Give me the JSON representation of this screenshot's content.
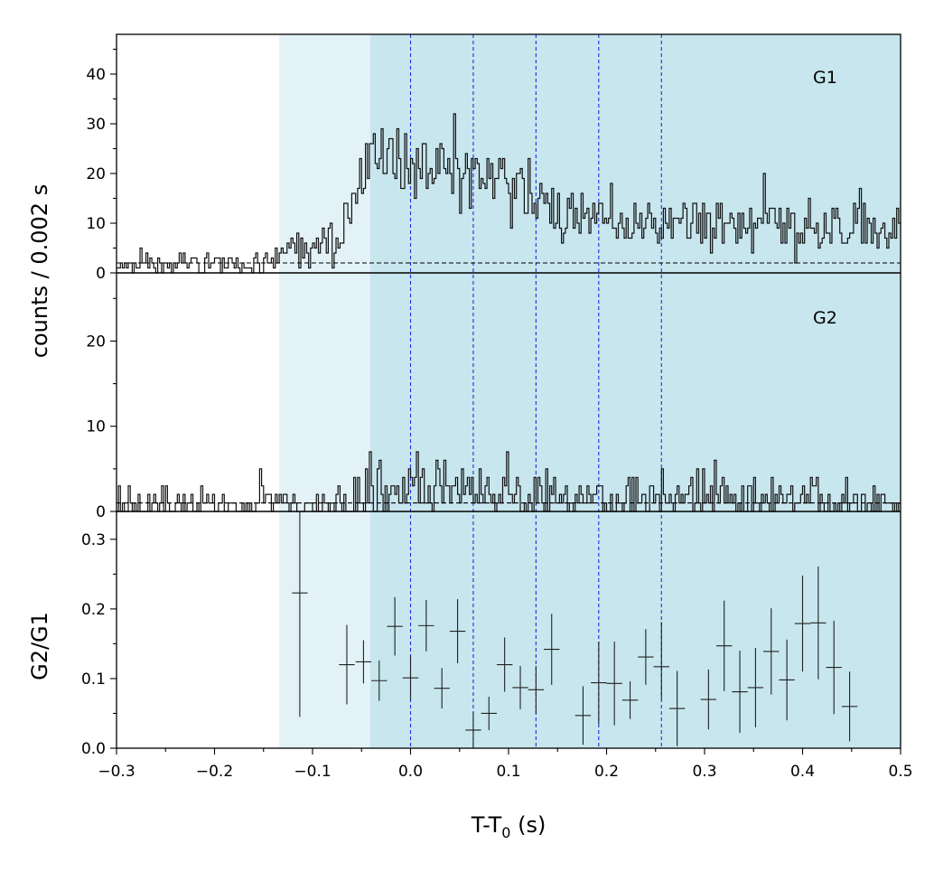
{
  "chart_data": {
    "type": "line",
    "xlabel": "T-T",
    "xlabel_sub": "0",
    "xlabel_unit": " (s)",
    "xlim": [
      -0.3,
      0.5
    ],
    "xticks": [
      "−0.3",
      "−0.2",
      "−0.1",
      "0.0",
      "0.1",
      "0.2",
      "0.3",
      "0.4",
      "0.5"
    ],
    "colors": {
      "shade_light": "#e3f2f6",
      "shade_dark": "#c8e6ee",
      "vline": "#1f2ee0",
      "line": "#111111",
      "errorbar": "#222222"
    },
    "shaded_regions": [
      {
        "x0": -0.134,
        "x1": 0.5,
        "shade": "light"
      },
      {
        "x0": -0.041,
        "x1": 0.5,
        "shade": "dark"
      }
    ],
    "vlines": [
      0.0,
      0.064,
      0.128,
      0.192,
      0.256
    ],
    "ylabel_shared": "counts /  0.002 s",
    "panels": [
      {
        "label": "G1",
        "ylim": [
          0,
          48
        ],
        "yticks": [
          "0",
          "10",
          "20",
          "30",
          "40"
        ],
        "background": 2,
        "bin_width": 0.002,
        "profile": [
          [
            -0.3,
            2
          ],
          [
            -0.134,
            2
          ],
          [
            -0.132,
            4.5
          ],
          [
            -0.09,
            5
          ],
          [
            -0.07,
            9
          ],
          [
            -0.05,
            15
          ],
          [
            -0.04,
            22
          ],
          [
            -0.02,
            24
          ],
          [
            0.0,
            22
          ],
          [
            0.03,
            22
          ],
          [
            0.07,
            19
          ],
          [
            0.1,
            18
          ],
          [
            0.12,
            15
          ],
          [
            0.16,
            12
          ],
          [
            0.2,
            11
          ],
          [
            0.3,
            10
          ],
          [
            0.4,
            9.5
          ],
          [
            0.5,
            9
          ]
        ],
        "noise": 0.55,
        "seed": 11
      },
      {
        "label": "G2",
        "ylim": [
          0,
          28
        ],
        "yticks": [
          "0",
          "10",
          "20"
        ],
        "background": 1,
        "bin_width": 0.002,
        "profile": [
          [
            -0.3,
            0.8
          ],
          [
            -0.06,
            0.9
          ],
          [
            -0.05,
            2.5
          ],
          [
            0.0,
            3.5
          ],
          [
            0.06,
            2.5
          ],
          [
            0.1,
            2
          ],
          [
            0.5,
            1.5
          ]
        ],
        "noise": 1.0,
        "seed": 29
      },
      {
        "ylabel": "G2/G1",
        "ylim": [
          0,
          0.34
        ],
        "yticks": [
          "0.0",
          "0.1",
          "0.2",
          "0.3"
        ],
        "points": [
          {
            "x": -0.113,
            "y": 0.223,
            "xerr": 0.008,
            "lo": 0.045,
            "hi": 0.34
          },
          {
            "x": -0.065,
            "y": 0.12,
            "xerr": 0.008,
            "lo": 0.063,
            "hi": 0.177
          },
          {
            "x": -0.048,
            "y": 0.124,
            "xerr": 0.008,
            "lo": 0.093,
            "hi": 0.155
          },
          {
            "x": -0.032,
            "y": 0.097,
            "xerr": 0.008,
            "lo": 0.068,
            "hi": 0.126
          },
          {
            "x": -0.016,
            "y": 0.175,
            "xerr": 0.008,
            "lo": 0.133,
            "hi": 0.217
          },
          {
            "x": 0.0,
            "y": 0.101,
            "xerr": 0.008,
            "lo": 0.069,
            "hi": 0.133
          },
          {
            "x": 0.016,
            "y": 0.176,
            "xerr": 0.008,
            "lo": 0.139,
            "hi": 0.213
          },
          {
            "x": 0.032,
            "y": 0.086,
            "xerr": 0.008,
            "lo": 0.057,
            "hi": 0.115
          },
          {
            "x": 0.048,
            "y": 0.168,
            "xerr": 0.008,
            "lo": 0.122,
            "hi": 0.214
          },
          {
            "x": 0.064,
            "y": 0.026,
            "xerr": 0.008,
            "lo": 0.0,
            "hi": 0.052
          },
          {
            "x": 0.08,
            "y": 0.05,
            "xerr": 0.008,
            "lo": 0.026,
            "hi": 0.074
          },
          {
            "x": 0.096,
            "y": 0.12,
            "xerr": 0.008,
            "lo": 0.081,
            "hi": 0.159
          },
          {
            "x": 0.112,
            "y": 0.087,
            "xerr": 0.008,
            "lo": 0.056,
            "hi": 0.118
          },
          {
            "x": 0.128,
            "y": 0.084,
            "xerr": 0.008,
            "lo": 0.05,
            "hi": 0.118
          },
          {
            "x": 0.144,
            "y": 0.142,
            "xerr": 0.008,
            "lo": 0.091,
            "hi": 0.193
          },
          {
            "x": 0.176,
            "y": 0.047,
            "xerr": 0.008,
            "lo": 0.005,
            "hi": 0.089
          },
          {
            "x": 0.192,
            "y": 0.094,
            "xerr": 0.008,
            "lo": 0.035,
            "hi": 0.153
          },
          {
            "x": 0.208,
            "y": 0.093,
            "xerr": 0.008,
            "lo": 0.033,
            "hi": 0.153
          },
          {
            "x": 0.224,
            "y": 0.069,
            "xerr": 0.008,
            "lo": 0.042,
            "hi": 0.096
          },
          {
            "x": 0.24,
            "y": 0.131,
            "xerr": 0.008,
            "lo": 0.091,
            "hi": 0.171
          },
          {
            "x": 0.256,
            "y": 0.117,
            "xerr": 0.008,
            "lo": 0.07,
            "hi": 0.181
          },
          {
            "x": 0.272,
            "y": 0.057,
            "xerr": 0.008,
            "lo": 0.003,
            "hi": 0.111
          },
          {
            "x": 0.304,
            "y": 0.07,
            "xerr": 0.008,
            "lo": 0.027,
            "hi": 0.113
          },
          {
            "x": 0.32,
            "y": 0.147,
            "xerr": 0.008,
            "lo": 0.082,
            "hi": 0.212
          },
          {
            "x": 0.336,
            "y": 0.081,
            "xerr": 0.008,
            "lo": 0.022,
            "hi": 0.14
          },
          {
            "x": 0.352,
            "y": 0.087,
            "xerr": 0.008,
            "lo": 0.03,
            "hi": 0.144
          },
          {
            "x": 0.368,
            "y": 0.139,
            "xerr": 0.008,
            "lo": 0.077,
            "hi": 0.201
          },
          {
            "x": 0.384,
            "y": 0.098,
            "xerr": 0.008,
            "lo": 0.04,
            "hi": 0.156
          },
          {
            "x": 0.4,
            "y": 0.179,
            "xerr": 0.008,
            "lo": 0.11,
            "hi": 0.248
          },
          {
            "x": 0.416,
            "y": 0.18,
            "xerr": 0.008,
            "lo": 0.099,
            "hi": 0.261
          },
          {
            "x": 0.432,
            "y": 0.116,
            "xerr": 0.008,
            "lo": 0.049,
            "hi": 0.183
          },
          {
            "x": 0.448,
            "y": 0.06,
            "xerr": 0.008,
            "lo": 0.01,
            "hi": 0.11
          }
        ]
      }
    ]
  }
}
